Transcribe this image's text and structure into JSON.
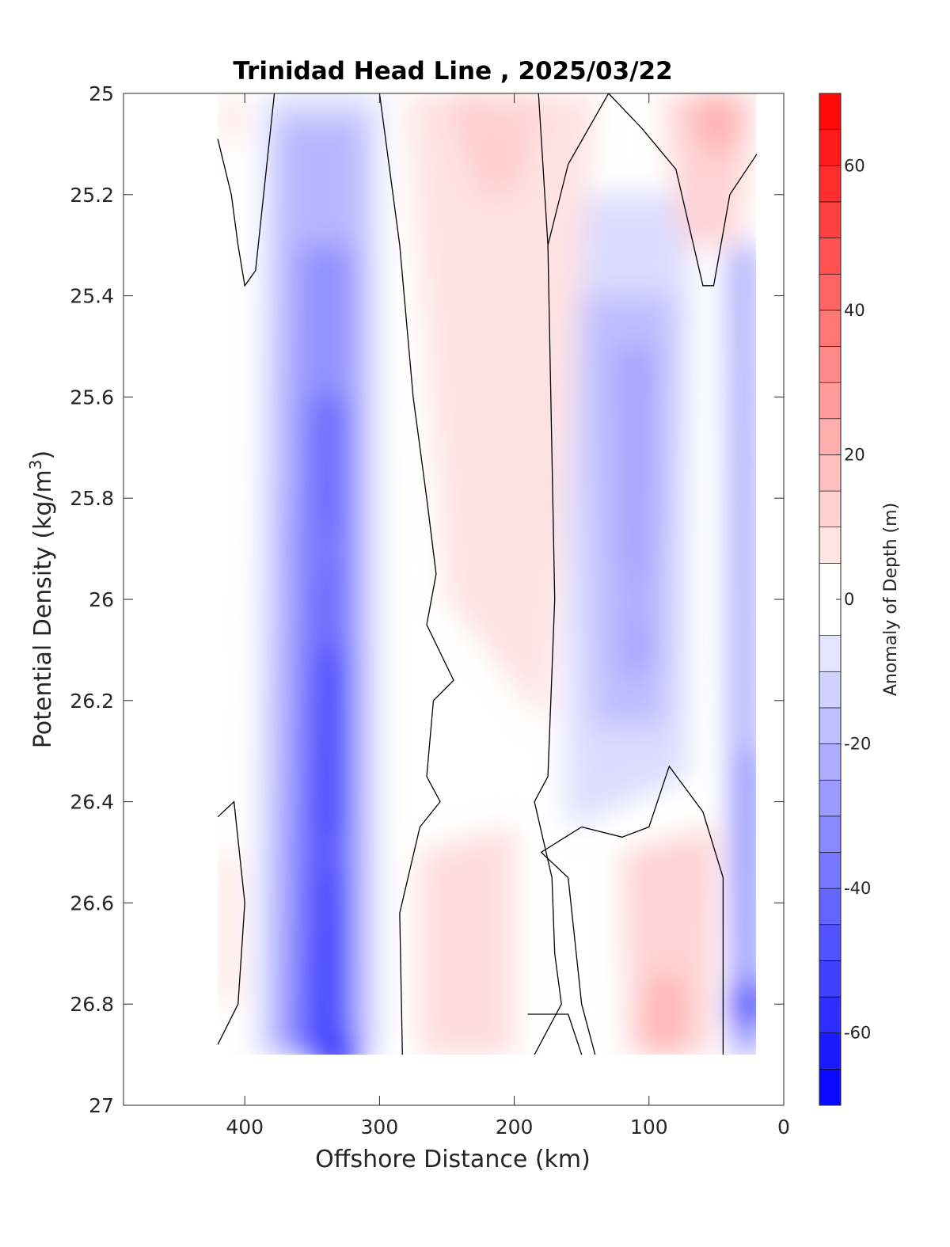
{
  "chart_data": {
    "type": "heatmap",
    "subtype": "filled-contour",
    "title": "Trinidad Head Line , 2025/03/22",
    "xlabel": "Offshore Distance (km)",
    "ylabel_main": "Potential Density (kg/m",
    "ylabel_sup": "3",
    "ylabel_close": ")",
    "xlim": [
      490,
      0
    ],
    "x_reversed": true,
    "ylim": [
      25,
      27
    ],
    "y_reversed": true,
    "x_ticks": [
      400,
      300,
      200,
      100,
      0
    ],
    "x_tick_labels": [
      "400",
      "300",
      "200",
      "100",
      "0"
    ],
    "y_ticks": [
      25,
      25.2,
      25.4,
      25.6,
      25.8,
      26,
      26.2,
      26.4,
      26.6,
      26.8,
      27
    ],
    "y_tick_labels": [
      "25",
      "25.2",
      "25.4",
      "25.6",
      "25.8",
      "26",
      "26.2",
      "26.4",
      "26.6",
      "26.8",
      "27"
    ],
    "data_extent_x": [
      420,
      20
    ],
    "data_extent_y": [
      25.0,
      26.9
    ],
    "zero_contour_color": "#000000",
    "anomaly_features": [
      {
        "label": "negative core",
        "x": 330,
        "y": 26.9,
        "value": -55
      },
      {
        "label": "negative",
        "x": 340,
        "y": 26.5,
        "value": -45
      },
      {
        "label": "negative",
        "x": 350,
        "y": 25.9,
        "value": -35
      },
      {
        "label": "negative",
        "x": 110,
        "y": 26.0,
        "value": -22
      },
      {
        "label": "negative edge",
        "x": 25,
        "y": 26.8,
        "value": -45
      },
      {
        "label": "positive",
        "x": 90,
        "y": 26.85,
        "value": 20
      },
      {
        "label": "positive",
        "x": 210,
        "y": 25.05,
        "value": 12
      },
      {
        "label": "positive",
        "x": 50,
        "y": 25.05,
        "value": 22
      },
      {
        "label": "positive",
        "x": 230,
        "y": 26.55,
        "value": 10
      }
    ],
    "colorbar": {
      "label": "Anomaly of Depth (m)",
      "range": [
        -70,
        70
      ],
      "ticks": [
        60,
        40,
        20,
        0,
        -20,
        -40,
        -60
      ],
      "tick_labels": [
        "60",
        "40",
        "20",
        "0",
        "-20",
        "-40",
        "-60"
      ],
      "levels": [
        -70,
        -65,
        -60,
        -55,
        -50,
        -45,
        -40,
        -35,
        -30,
        -25,
        -20,
        -15,
        -10,
        -5,
        5,
        10,
        15,
        20,
        25,
        30,
        35,
        40,
        45,
        50,
        55,
        60,
        65,
        70
      ],
      "colormap": "blue-white-red"
    }
  }
}
